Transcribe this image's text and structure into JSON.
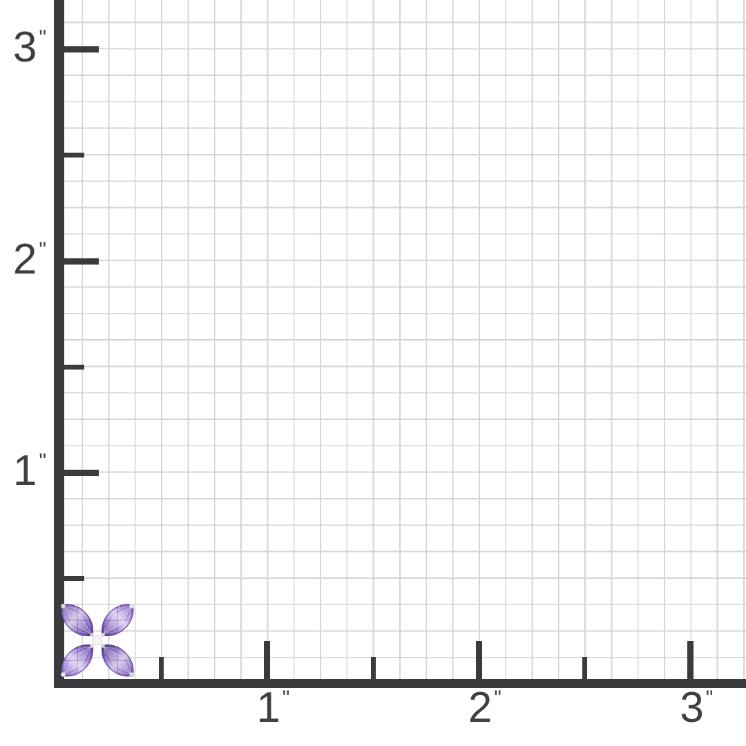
{
  "page": {
    "background_color": "#ffffff"
  },
  "ruler": {
    "axis_color": "#3b3b3d",
    "grid_line_color": "#d4d4d7",
    "label_color": "#3f3f42",
    "unit_symbol": "\"",
    "squares_per_inch": 8,
    "x_axis": {
      "major_ticks": [
        {
          "inches": 1,
          "label": "1"
        },
        {
          "inches": 2,
          "label": "2"
        },
        {
          "inches": 3,
          "label": "3"
        }
      ],
      "minor_tick_inches": [
        0.5,
        1.5,
        2.5
      ]
    },
    "y_axis": {
      "major_ticks": [
        {
          "inches": 1,
          "label": "1"
        },
        {
          "inches": 2,
          "label": "2"
        },
        {
          "inches": 3,
          "label": "3"
        }
      ],
      "minor_tick_inches": [
        0.5,
        1.5,
        2.5
      ]
    }
  },
  "jewelry_item": {
    "description": "flower-shaped jewelry piece with four marquise-cut purple amethyst petals, silver prong tips and a small round white center stone",
    "approx_size": "about 3/8 inch across, placed at the grid origin",
    "gem_deep_color": "#52388c",
    "gem_dark_color": "#6b4fa8",
    "gem_mid_color": "#a78bd6",
    "gem_light_color": "#dccff2",
    "metal_color": "#e8e8ee",
    "metal_edge_color": "#b6b6c0",
    "center_stone_color": "#fbfbfe"
  }
}
